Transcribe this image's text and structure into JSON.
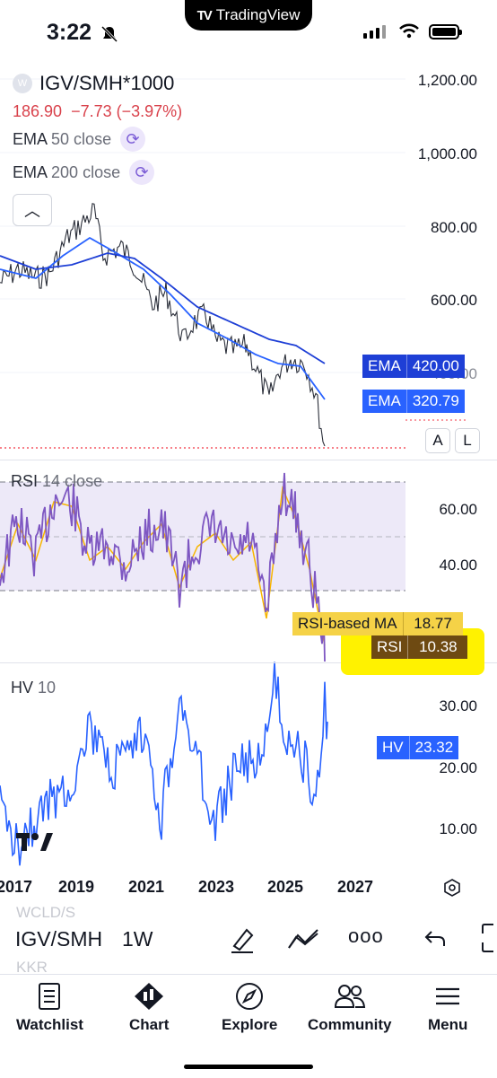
{
  "status_bar": {
    "time": "3:22",
    "banner_app": "TradingView"
  },
  "header": {
    "symbol": "IGV/SMH*1000",
    "badge": "W",
    "price": "186.90",
    "change": "−7.73 (−3.97%)",
    "ema50_label": "EMA",
    "ema50_params": "50 close",
    "ema200_label": "EMA",
    "ema200_params": "200 close"
  },
  "price_axis": [
    "1,200.00",
    "1,000.00",
    "800.00",
    "600.00",
    "400.00"
  ],
  "price_tags": {
    "ema1": {
      "label": "EMA",
      "value": "420.00",
      "color": "#1e3fd6"
    },
    "ema2": {
      "label": "EMA",
      "value": "320.79",
      "color": "#2962ff"
    }
  },
  "scale_buttons": {
    "auto": "A",
    "log": "L"
  },
  "rsi": {
    "label": "RSI",
    "params": "14 close",
    "axis": [
      "60.00",
      "40.00"
    ],
    "ma_label": "RSI-based MA",
    "ma_value": "18.77",
    "rsi_label": "RSI",
    "rsi_value": "10.38",
    "highlight_color": "#fff200"
  },
  "hv": {
    "label": "HV",
    "params": "10",
    "axis": [
      "30.00",
      "20.00",
      "10.00"
    ],
    "tag_label": "HV",
    "tag_value": "23.32",
    "color": "#2962ff"
  },
  "time_axis": [
    "2017",
    "2019",
    "2021",
    "2023",
    "2025",
    "2027"
  ],
  "toolbar": {
    "symbol": "IGV/SMH",
    "timeframe": "1W",
    "ghost_top": "WCLD/S",
    "ghost_bottom": "KKR"
  },
  "nav": [
    {
      "label": "Watchlist",
      "icon": "watchlist-icon"
    },
    {
      "label": "Chart",
      "icon": "chart-icon"
    },
    {
      "label": "Explore",
      "icon": "compass-icon"
    },
    {
      "label": "Community",
      "icon": "community-icon"
    },
    {
      "label": "Menu",
      "icon": "menu-icon"
    }
  ]
}
